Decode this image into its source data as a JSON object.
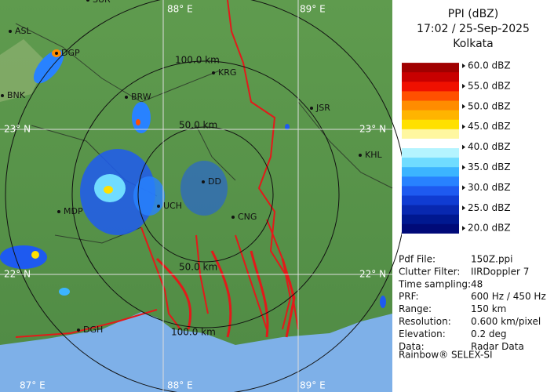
{
  "map": {
    "top_labels": [
      "88° E",
      "89° E"
    ],
    "bottom_labels": [
      "87° E",
      "88° E",
      "89° E"
    ],
    "left_labels": [
      "23° N",
      "22° N"
    ],
    "right_labels": [
      "23° N",
      "22° N"
    ],
    "ring_labels": [
      "50.0 km",
      "100.0 km",
      "50.0 km",
      "100.0 km"
    ],
    "places": [
      "ASL",
      "DGP",
      "BNK",
      "BRW",
      "KRG",
      "JSR",
      "KHL",
      "MDP",
      "DD",
      "UCH",
      "CNG",
      "DGH",
      "SUR"
    ]
  },
  "legend": {
    "title": "PPI (dBZ)",
    "time": "17:02 / 25-Sep-2025",
    "station": "Kolkata",
    "labels": [
      "60.0 dBZ",
      "55.0 dBZ",
      "50.0 dBZ",
      "45.0 dBZ",
      "40.0 dBZ",
      "35.0 dBZ",
      "30.0 dBZ",
      "25.0 dBZ",
      "20.0 dBZ"
    ],
    "colors": [
      "#ffffff",
      "#a00000",
      "#c80000",
      "#f01000",
      "#ff5000",
      "#ff8c00",
      "#ffb400",
      "#ffe000",
      "#fff7a0",
      "#ffffff",
      "#b4f4ff",
      "#70dcff",
      "#3cb4ff",
      "#2882ff",
      "#1e5af0",
      "#103cd2",
      "#0828b0",
      "#001890",
      "#000a78",
      "#ffffff"
    ]
  },
  "info": {
    "rows": [
      [
        "Pdf File:",
        "150Z.ppi"
      ],
      [
        "Clutter Filter:",
        "IIRDoppler 7"
      ],
      [
        "Time sampling:48",
        ""
      ],
      [
        "PRF:",
        "600 Hz / 450 Hz"
      ],
      [
        "Range:",
        "150 km"
      ],
      [
        "Resolution:",
        "0.600 km/pixel"
      ],
      [
        "Elevation:",
        "0.2 deg"
      ],
      [
        "Data:",
        "Radar Data"
      ]
    ],
    "footer": "Rainbow® SELEX-SI"
  }
}
